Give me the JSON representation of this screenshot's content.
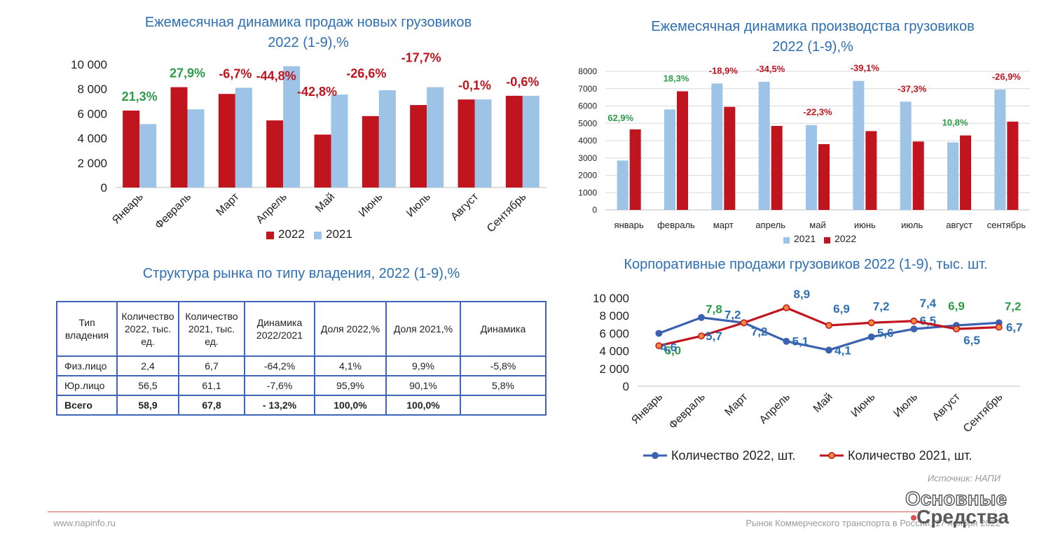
{
  "colors": {
    "red": "#c0141f",
    "blue": "#9dc3e6",
    "green": "#2e9b4a",
    "title": "#2e6fb3",
    "line2022": "#3a62b0",
    "line2021": "#c0141f"
  },
  "chart_data": [
    {
      "id": "sales",
      "type": "bar",
      "title": [
        "Ежемесячная динамика продаж новых грузовиков",
        "2022 (1-9),%"
      ],
      "categories": [
        "Январь",
        "Февраль",
        "Март",
        "Апрель",
        "Май",
        "Июнь",
        "Июль",
        "Август",
        "Сентябрь"
      ],
      "series": [
        {
          "name": "2022",
          "color": "#c0141f",
          "values": [
            6250,
            8150,
            7600,
            5450,
            4300,
            5800,
            6700,
            7150,
            7450
          ]
        },
        {
          "name": "2021",
          "color": "#9dc3e6",
          "values": [
            5150,
            6350,
            8100,
            9850,
            7550,
            7900,
            8150,
            7150,
            7450
          ]
        }
      ],
      "changes": [
        "21,3%",
        "27,9%",
        "-6,7%",
        "-44,8%",
        "-42,8%",
        "-26,6%",
        "-17,7%",
        "-0,1%",
        "-0,6%"
      ],
      "change_colors": [
        "#2e9b4a",
        "#2e9b4a",
        "#c0141f",
        "#c0141f",
        "#c0141f",
        "#c0141f",
        "#c0141f",
        "#c0141f",
        "#c0141f"
      ],
      "ylim": [
        0,
        10000
      ],
      "yticks": [
        "0",
        "2 000",
        "4 000",
        "6 000",
        "8 000",
        "10 000"
      ],
      "legend": "bottom"
    },
    {
      "id": "production",
      "type": "bar",
      "title": [
        "Ежемесячная динамика производства грузовиков",
        "2022 (1-9),%"
      ],
      "categories": [
        "январь",
        "февраль",
        "март",
        "апрель",
        "май",
        "июнь",
        "июль",
        "август",
        "сентябрь"
      ],
      "series": [
        {
          "name": "2021",
          "color": "#9dc3e6",
          "values": [
            2850,
            5800,
            7300,
            7400,
            4900,
            7450,
            6250,
            3900,
            6950
          ]
        },
        {
          "name": "2022",
          "color": "#c0141f",
          "values": [
            4650,
            6850,
            5950,
            4850,
            3800,
            4550,
            3950,
            4300,
            5100
          ]
        }
      ],
      "changes": [
        "62,9%",
        "18,3%",
        "-18,9%",
        "-34,5%",
        "-22,3%",
        "-39,1%",
        "-37,3%",
        "10,8%",
        "-26,9%"
      ],
      "change_colors": [
        "#2e9b4a",
        "#2e9b4a",
        "#c0141f",
        "#c0141f",
        "#c0141f",
        "#c0141f",
        "#c0141f",
        "#2e9b4a",
        "#c0141f"
      ],
      "ylim": [
        0,
        8000
      ],
      "yticks": [
        "0",
        "1000",
        "2000",
        "3000",
        "4000",
        "5000",
        "6000",
        "7000",
        "8000"
      ],
      "legend": "bottom"
    },
    {
      "id": "corporate",
      "type": "line",
      "title": [
        "Корпоративные продажи  грузовиков  2022 (1-9), тыс. шт."
      ],
      "categories": [
        "Январь",
        "Февраль",
        "Март",
        "Апрель",
        "Май",
        "Июнь",
        "Июль",
        "Август",
        "Сентябрь"
      ],
      "series": [
        {
          "name": "Количество 2022, шт.",
          "color": "#3a62b0",
          "values": [
            6000,
            7800,
            7200,
            5100,
            4100,
            5600,
            6500,
            6900,
            7200
          ],
          "labels": [
            "6,0",
            "7,8",
            "7,2",
            "5,1",
            "4,1",
            "5,6",
            "6,5",
            "6,9",
            "7,2"
          ],
          "label_colors": [
            "#2e9b4a",
            "#2e9b4a",
            "#2e6fb3",
            "#2e6fb3",
            "#2e6fb3",
            "#2e6fb3",
            "#2e6fb3",
            "#2e9b4a",
            "#2e9b4a"
          ]
        },
        {
          "name": "Количество 2021, шт.",
          "color": "#c0141f",
          "values": [
            4600,
            5700,
            7200,
            8900,
            6900,
            7200,
            7400,
            6500,
            6700
          ],
          "labels": [
            "4,6",
            "5,7",
            "7,2",
            "8,9",
            "6,9",
            "7,2",
            "7,4",
            "6,5",
            "6,7"
          ],
          "label_colors": [
            "#2e6fb3",
            "#2e6fb3",
            "#2e6fb3",
            "#2e6fb3",
            "#2e6fb3",
            "#2e6fb3",
            "#2e6fb3",
            "#2e6fb3",
            "#2e6fb3"
          ]
        }
      ],
      "ylim": [
        0,
        10000
      ],
      "yticks": [
        "0",
        "2 000",
        "4 000",
        "6 000",
        "8 000",
        "10 000"
      ],
      "legend": "bottom"
    },
    {
      "id": "ownership",
      "type": "table",
      "title": "Структура рынка по типу владения, 2022 (1-9),%",
      "columns": [
        "Тип владения",
        "Количество 2022, тыс. ед.",
        "Количество 2021, тыс. ед.",
        "Динамика 2022/2021",
        "Доля 2022,%",
        "Доля 2021,%",
        "Динамика"
      ],
      "rows": [
        [
          "Физ.лицо",
          "2,4",
          "6,7",
          "-64,2%",
          "4,1%",
          "9,9%",
          "-5,8%"
        ],
        [
          "Юр.лицо",
          "56,5",
          "61,1",
          "-7,6%",
          "95,9%",
          "90,1%",
          "5,8%"
        ],
        [
          "Всего",
          "58,9",
          "67,8",
          "- 13,2%",
          "100,0%",
          "100,0%",
          ""
        ]
      ]
    }
  ],
  "source": "Источник: НАПИ",
  "footer": {
    "site": "www.napinfo.ru",
    "report": "Рынок Коммерческого транспорта в России, 17 ноября 2022"
  },
  "logo": {
    "line1": "Основные",
    "line2": "Средства"
  }
}
